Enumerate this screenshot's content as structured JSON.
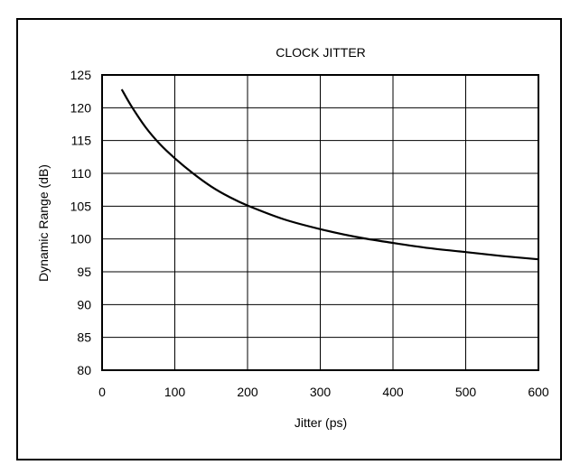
{
  "chart_data": {
    "type": "line",
    "title": "CLOCK JITTER",
    "xlabel": "Jitter (ps)",
    "ylabel": "Dynamic Range (dB)",
    "xlim": [
      0,
      600
    ],
    "ylim": [
      80,
      125
    ],
    "grid": true,
    "x_ticks": [
      "0",
      "100",
      "200",
      "300",
      "400",
      "500",
      "600"
    ],
    "y_ticks": [
      "80",
      "85",
      "90",
      "95",
      "100",
      "105",
      "110",
      "115",
      "120",
      "125"
    ],
    "series": [
      {
        "color": "#000000",
        "x": [
          27,
          40,
          60,
          80,
          100,
          125,
          150,
          175,
          200,
          250,
          300,
          350,
          400,
          450,
          500,
          550,
          600
        ],
        "y": [
          122.8,
          120.3,
          117.0,
          114.4,
          112.3,
          110.0,
          108.0,
          106.4,
          105.1,
          103.0,
          101.5,
          100.3,
          99.4,
          98.6,
          98.0,
          97.4,
          96.9
        ]
      }
    ]
  }
}
